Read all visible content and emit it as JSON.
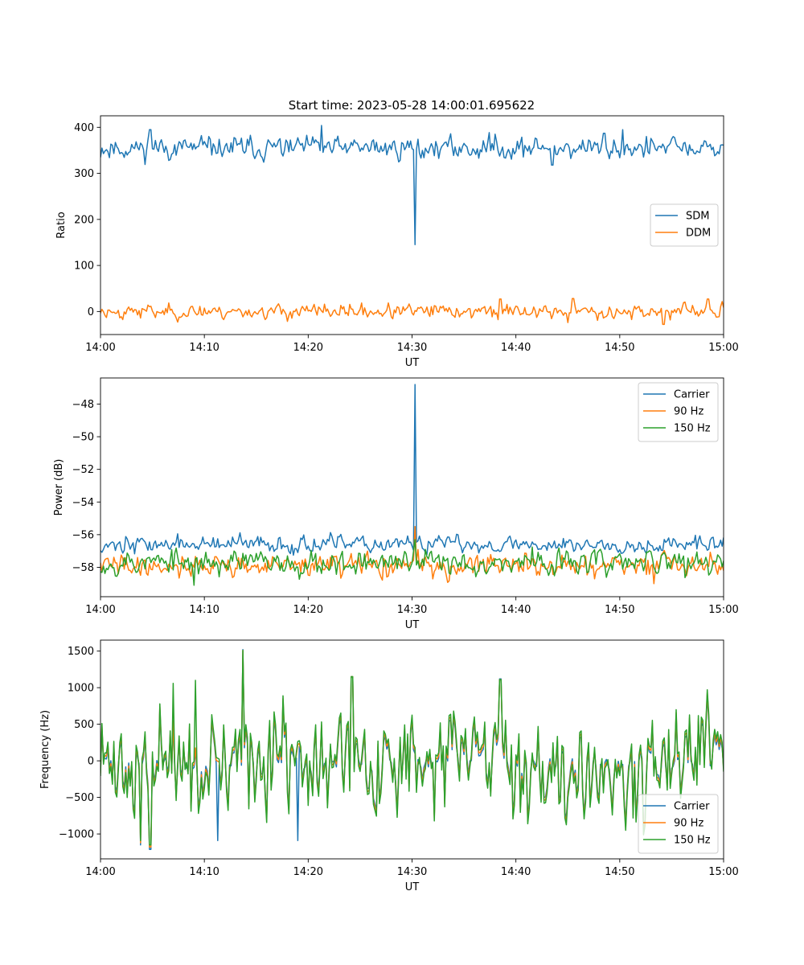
{
  "figure": {
    "title": "Start time: 2023-05-28 14:00:01.695622"
  },
  "chart_data": [
    {
      "type": "line",
      "xlabel": "UT",
      "ylabel": "Ratio",
      "xlim": [
        0,
        60
      ],
      "ylim": [
        -50,
        425
      ],
      "xticks": [
        "14:00",
        "14:10",
        "14:20",
        "14:30",
        "14:40",
        "14:50",
        "15:00"
      ],
      "yticks": [
        0,
        100,
        200,
        300,
        400
      ],
      "legend": "center-right",
      "grid": false,
      "series": [
        {
          "name": "SDM",
          "color": "#1f77b4",
          "level": 355,
          "noise": 14,
          "seed": 11,
          "spikes": [
            [
              4.8,
              395
            ],
            [
              21.3,
              404
            ],
            [
              30.3,
              145
            ],
            [
              38.0,
              385
            ],
            [
              43.5,
              318
            ],
            [
              48.5,
              387
            ],
            [
              50.3,
              395
            ]
          ]
        },
        {
          "name": "DDM",
          "color": "#ff7f0e",
          "level": 0,
          "noise": 9,
          "seed": 23,
          "spikes": [
            [
              38.5,
              27
            ],
            [
              45.5,
              28
            ],
            [
              54.2,
              -28
            ],
            [
              58.5,
              27
            ],
            [
              45.0,
              -24
            ]
          ]
        }
      ]
    },
    {
      "type": "line",
      "xlabel": "UT",
      "ylabel": "Power (dB)",
      "xlim": [
        0,
        60
      ],
      "ylim": [
        -59.8,
        -46.4
      ],
      "xticks": [
        "14:00",
        "14:10",
        "14:20",
        "14:30",
        "14:40",
        "14:50",
        "15:00"
      ],
      "yticks": [
        -58,
        -56,
        -54,
        -52,
        -50,
        -48
      ],
      "legend": "top-right",
      "grid": false,
      "series": [
        {
          "name": "Carrier",
          "color": "#1f77b4",
          "level": -56.6,
          "noise": 0.3,
          "seed": 37,
          "spikes": [
            [
              30.3,
              -46.8
            ]
          ]
        },
        {
          "name": "90 Hz",
          "color": "#ff7f0e",
          "level": -57.9,
          "noise": 0.4,
          "seed": 41,
          "spikes": [
            [
              30.3,
              -55.5
            ],
            [
              53.3,
              -59.0
            ]
          ]
        },
        {
          "name": "150 Hz",
          "color": "#2ca02c",
          "level": -57.7,
          "noise": 0.45,
          "seed": 53,
          "spikes": [
            [
              9.0,
              -59.1
            ],
            [
              30.3,
              -56.3
            ]
          ]
        }
      ]
    },
    {
      "type": "line",
      "xlabel": "UT",
      "ylabel": "Frequency (Hz)",
      "xlim": [
        0,
        60
      ],
      "ylim": [
        -1340,
        1650
      ],
      "xticks": [
        "14:00",
        "14:10",
        "14:20",
        "14:30",
        "14:40",
        "14:50",
        "15:00"
      ],
      "yticks": [
        -1000,
        -500,
        0,
        500,
        1000,
        1500
      ],
      "legend": "bottom-right",
      "grid": false,
      "series": [
        {
          "name": "Carrier",
          "color": "#1f77b4",
          "level": -40,
          "noise": 420,
          "seed": 71,
          "offset": -80,
          "spikes": [
            [
              3.9,
              -1150
            ],
            [
              4.8,
              -1210
            ],
            [
              13.7,
              1520
            ],
            [
              24.2,
              1150
            ],
            [
              38.5,
              1120
            ],
            [
              11.3,
              -1090
            ],
            [
              19.0,
              -1090
            ]
          ]
        },
        {
          "name": "90 Hz",
          "color": "#ff7f0e",
          "level": -40,
          "noise": 420,
          "seed": 71,
          "offset": -40,
          "spikes": [
            [
              3.9,
              -1120
            ],
            [
              4.8,
              -1180
            ],
            [
              13.7,
              1510
            ],
            [
              24.2,
              1150
            ],
            [
              38.5,
              1110
            ]
          ]
        },
        {
          "name": "150 Hz",
          "color": "#2ca02c",
          "level": -40,
          "noise": 420,
          "seed": 71,
          "offset": 0,
          "spikes": [
            [
              3.9,
              -1090
            ],
            [
              4.8,
              -1150
            ],
            [
              13.7,
              1510
            ],
            [
              24.2,
              1150
            ],
            [
              38.5,
              1110
            ],
            [
              7.0,
              1060
            ],
            [
              9.1,
              1100
            ]
          ]
        }
      ]
    }
  ]
}
